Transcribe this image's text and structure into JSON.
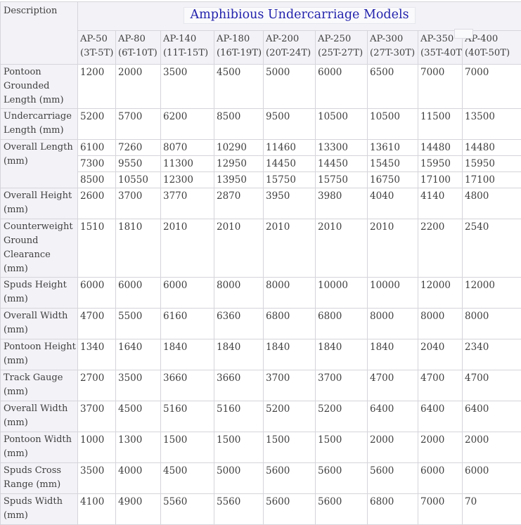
{
  "corner_header": "Description",
  "title": "Amphibious Undercarriage Models",
  "columns": [
    {
      "model": "AP-50",
      "capacity": "(3T-5T)"
    },
    {
      "model": "AP-80",
      "capacity": "(6T-10T)"
    },
    {
      "model": "AP-140",
      "capacity": "(11T-15T)"
    },
    {
      "model": "AP-180",
      "capacity": "(16T-19T)"
    },
    {
      "model": "AP-200",
      "capacity": "(20T-24T)"
    },
    {
      "model": "AP-250",
      "capacity": "(25T-27T)"
    },
    {
      "model": "AP-300",
      "capacity": "(27T-30T)"
    },
    {
      "model": "AP-350",
      "capacity": "(35T-40T)"
    },
    {
      "model": "AP-400",
      "capacity": "(40T-50T)"
    }
  ],
  "rows": [
    {
      "label": "Pontoon Grounded Length (mm)",
      "lines": 3,
      "values": [
        "1200",
        "2000",
        "3500",
        "4500",
        "5000",
        "6000",
        "6500",
        "7000",
        "7000"
      ]
    },
    {
      "label": "Undercarriage Length (mm)",
      "lines": 2,
      "values": [
        "5200",
        "5700",
        "6200",
        "8500",
        "9500",
        "10500",
        "10500",
        "11500",
        "13500"
      ]
    },
    {
      "label": "Overall Length (mm)",
      "lines": 2,
      "value_lines": [
        [
          "6100",
          "7260",
          "8070",
          "10290",
          "11460",
          "13300",
          "13610",
          "14480",
          "14480"
        ],
        [
          "7300",
          "9550",
          "11300",
          "12950",
          "14450",
          "14450",
          "15450",
          "15950",
          "15950"
        ],
        [
          "8500",
          "10550",
          "12300",
          "13950",
          "15750",
          "15750",
          "16750",
          "17100",
          "17100"
        ]
      ]
    },
    {
      "label": "Overall Height (mm)",
      "lines": 2,
      "values": [
        "2600",
        "3700",
        "3770",
        "2870",
        "3950",
        "3980",
        "4040",
        "4140",
        "4800"
      ]
    },
    {
      "label": "Counterweight Ground Clearance (mm)",
      "lines": 4,
      "values": [
        "1510",
        "1810",
        "2010",
        "2010",
        "2010",
        "2010",
        "2010",
        "2200",
        "2540"
      ]
    },
    {
      "label": "Spuds Height (mm)",
      "lines": 2,
      "values": [
        "6000",
        "6000",
        "6000",
        "8000",
        "8000",
        "10000",
        "10000",
        "12000",
        "12000"
      ]
    },
    {
      "label": "Overall Width (mm)",
      "lines": 2,
      "values": [
        "4700",
        "5500",
        "6160",
        "6360",
        "6800",
        "6800",
        "8000",
        "8000",
        "8000"
      ]
    },
    {
      "label": "Pontoon Height (mm)",
      "lines": 2,
      "values": [
        "1340",
        "1640",
        "1840",
        "1840",
        "1840",
        "1840",
        "1840",
        "2040",
        "2340"
      ]
    },
    {
      "label": "Track Gauge (mm)",
      "lines": 2,
      "values": [
        "2700",
        "3500",
        "3660",
        "3660",
        "3700",
        "3700",
        "4700",
        "4700",
        "4700"
      ]
    },
    {
      "label": "Overall Width (mm)",
      "lines": 2,
      "values": [
        "3700",
        "4500",
        "5160",
        "5160",
        "5200",
        "5200",
        "6400",
        "6400",
        "6400"
      ]
    },
    {
      "label": "Pontoon Width (mm)",
      "lines": 2,
      "values": [
        "1000",
        "1300",
        "1500",
        "1500",
        "1500",
        "1500",
        "2000",
        "2000",
        "2000"
      ]
    },
    {
      "label": "Spuds Cross Range (mm)",
      "lines": 2,
      "values": [
        "3500",
        "4000",
        "4500",
        "5000",
        "5600",
        "5600",
        "5600",
        "6000",
        "6000"
      ]
    },
    {
      "label": "Spuds Width (mm)",
      "lines": 2,
      "values": [
        "4100",
        "4900",
        "5560",
        "5560",
        "5600",
        "5600",
        "6800",
        "7000",
        "70"
      ]
    }
  ],
  "layout_column_widths": [
    110,
    54,
    64,
    76,
    70,
    74,
    74,
    72,
    63,
    84
  ],
  "colors": {
    "title_blue": "#2323ad",
    "header_background": "#f2f2f7",
    "border": "#d5d5db",
    "text": "#3f3f3f",
    "cell_background": "#ffffff"
  }
}
